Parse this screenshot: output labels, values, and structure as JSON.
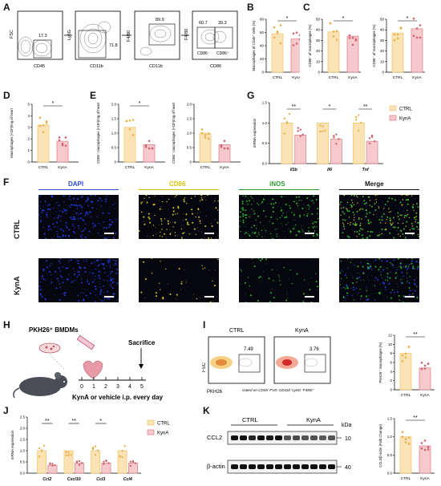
{
  "colors": {
    "ctrl": "#f0c36a",
    "kyna": "#d97b83",
    "ctrl_fill": "#fbe3b6",
    "kyna_fill": "#f6c9cd",
    "dot_ctrl": "#e9b04a",
    "dot_kyna": "#cf6470"
  },
  "panels": {
    "A": "A",
    "B": "B",
    "C": "C",
    "D": "D",
    "E": "E",
    "F": "F",
    "G": "G",
    "H": "H",
    "I": "I",
    "J": "J",
    "K": "K"
  },
  "panelA": {
    "plot1": {
      "x": "CD45",
      "y": "FSC",
      "gate": "17.3"
    },
    "plot2": {
      "x": "CD11b",
      "y": "Ly6G",
      "gate": "71.8"
    },
    "plot3": {
      "x": "CD11b",
      "y": "F4/80",
      "gate": "89.9"
    },
    "plot4": {
      "x": "CD86",
      "y": "F4/80",
      "gate_left": "60.7",
      "gate_right": "39.3",
      "label_left": "CD86⁻",
      "label_right": "CD86⁺"
    }
  },
  "sig": {
    "one": "*",
    "two": "**"
  },
  "groups": {
    "ctrl": "CTRL",
    "kyna": "KynA"
  },
  "legend": {
    "ctrl": "CTRL",
    "kyna": "KynA"
  },
  "panelB": {
    "ylabel": "Macrophages of CD45⁺ cells (%)",
    "yticks": [
      "0",
      "20",
      "40",
      "60",
      "80"
    ]
  },
  "panelC": {
    "ylabel1": "CD86⁺ of macrophages (%)",
    "ylabel2": "CD86⁻ of macrophages (%)",
    "yticks": [
      "0",
      "10",
      "20",
      "30",
      "40",
      "50"
    ]
  },
  "panelD": {
    "ylabel": "Macrophages (×10³)/mg of heart",
    "yticks": [
      "0",
      "1",
      "2",
      "3",
      "4",
      "5"
    ]
  },
  "panelE": {
    "ylabel1": "CD86⁺ macrophages (×10³)/mg of heart",
    "ylabel2": "CD86⁻ macrophages (×10³)/mg of heart",
    "yticks": [
      "0",
      "0.5",
      "1.0",
      "1.5",
      "2.0"
    ]
  },
  "panelG": {
    "ylabel": "mRNA expression",
    "genes": [
      "Il1b",
      "Il6",
      "Tnf"
    ],
    "yticks": [
      "0.0",
      "0.5",
      "1.0",
      "1.5"
    ]
  },
  "panelF": {
    "headers": [
      "DAPI",
      "CD86",
      "iNOS",
      "Merge"
    ],
    "rows": [
      "CTRL",
      "KynA"
    ]
  },
  "panelH": {
    "title": "PKH26⁺ BMDMs",
    "sacrifice": "Sacrifice",
    "days": [
      "0",
      "1",
      "2",
      "3",
      "4",
      "5"
    ],
    "caption": "KynA or vehicle i.p. every day"
  },
  "panelI": {
    "titles": [
      "CTRL",
      "KynA"
    ],
    "values": [
      "7.49",
      "3.76"
    ],
    "xlabel": "PKH26",
    "ylabel": "FSC",
    "gating": "Gated on CD45⁺FVD⁻CD11b⁺Ly6G⁻F4/80⁺",
    "bar_ylabel": "PKH26⁺ macrophages (%)",
    "yticks": [
      "0",
      "2",
      "4",
      "6",
      "8",
      "10",
      "12"
    ]
  },
  "panelJ": {
    "ylabel": "mRNA expression",
    "genes": [
      "Ccl2",
      "Cxcl10",
      "Ccl3",
      "Ccl4"
    ],
    "yticks": [
      "0.0",
      "0.5",
      "1.0",
      "1.5",
      "2.0",
      "2.5"
    ],
    "sig": [
      "**",
      "**",
      "*",
      ""
    ]
  },
  "panelK": {
    "bands": [
      "CCL2",
      "β-actin"
    ],
    "kda_label": "kDa",
    "kda": [
      "10",
      "40"
    ],
    "groups": [
      "CTRL",
      "KynA"
    ],
    "bar_ylabel": "CCL2/β-actin (Fold Change)",
    "yticks": [
      "0.0",
      "0.5",
      "1.0",
      "1.5"
    ]
  },
  "chart_data": [
    {
      "type": "bar",
      "panel": "B",
      "categories": [
        "CTRL",
        "KynA"
      ],
      "values": [
        58,
        50
      ],
      "ylim": [
        0,
        80
      ]
    },
    {
      "type": "bar",
      "panel": "C-left",
      "categories": [
        "CTRL",
        "KynA"
      ],
      "values": [
        38,
        34
      ],
      "ylim": [
        0,
        50
      ]
    },
    {
      "type": "bar",
      "panel": "C-right",
      "categories": [
        "CTRL",
        "KynA"
      ],
      "values": [
        37,
        41
      ],
      "ylim": [
        0,
        50
      ]
    },
    {
      "type": "bar",
      "panel": "D",
      "categories": [
        "CTRL",
        "KynA"
      ],
      "values": [
        3.2,
        1.8
      ],
      "ylim": [
        0,
        5
      ]
    },
    {
      "type": "bar",
      "panel": "E-left",
      "categories": [
        "CTRL",
        "KynA"
      ],
      "values": [
        1.2,
        0.6
      ],
      "ylim": [
        0,
        2
      ]
    },
    {
      "type": "bar",
      "panel": "E-right",
      "categories": [
        "CTRL",
        "KynA"
      ],
      "values": [
        1.0,
        0.6
      ],
      "ylim": [
        0,
        2
      ]
    },
    {
      "type": "bar",
      "panel": "G",
      "categories": [
        "Il1b",
        "Il6",
        "Tnf"
      ],
      "series": [
        {
          "name": "CTRL",
          "values": [
            1.0,
            1.0,
            1.0
          ]
        },
        {
          "name": "KynA",
          "values": [
            0.7,
            0.6,
            0.55
          ]
        }
      ],
      "ylim": [
        0,
        1.5
      ]
    },
    {
      "type": "bar",
      "panel": "I",
      "categories": [
        "CTRL",
        "KynA"
      ],
      "values": [
        8.0,
        4.8
      ],
      "ylim": [
        0,
        12
      ]
    },
    {
      "type": "bar",
      "panel": "J",
      "categories": [
        "Ccl2",
        "Cxcl10",
        "Ccl3",
        "Ccl4"
      ],
      "series": [
        {
          "name": "CTRL",
          "values": [
            1.0,
            1.0,
            1.0,
            1.0
          ]
        },
        {
          "name": "KynA",
          "values": [
            0.35,
            0.45,
            0.45,
            0.45
          ]
        }
      ],
      "ylim": [
        0,
        2.5
      ]
    },
    {
      "type": "bar",
      "panel": "K",
      "categories": [
        "CTRL",
        "KynA"
      ],
      "values": [
        1.0,
        0.75
      ],
      "ylim": [
        0,
        1.5
      ]
    }
  ]
}
